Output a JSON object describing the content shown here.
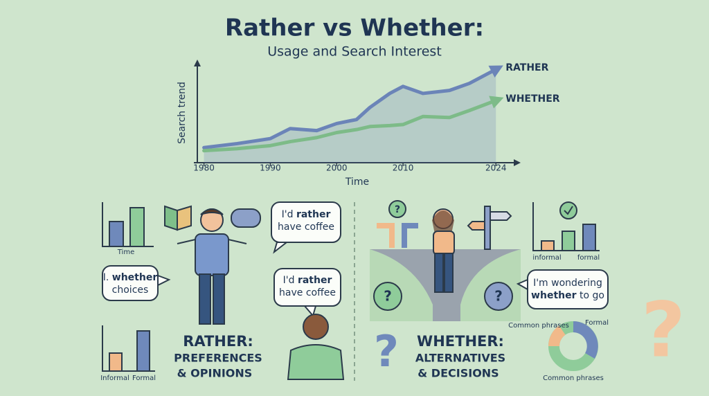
{
  "header": {
    "title": "Rather vs Whether:",
    "subtitle": "Usage and Search Interest"
  },
  "chart_data": {
    "type": "line",
    "ylabel": "Search trend",
    "xlabel": "Time",
    "x": [
      1980,
      1985,
      1990,
      1993,
      1997,
      2000,
      2003,
      2005,
      2008,
      2010,
      2013,
      2017,
      2020,
      2024
    ],
    "series": [
      {
        "name": "RATHER",
        "color": "#6b84b8",
        "values": [
          15,
          19,
          24,
          34,
          32,
          39,
          43,
          55,
          69,
          76,
          69,
          72,
          79,
          93
        ]
      },
      {
        "name": "WHETHER",
        "color": "#7dbb88",
        "values": [
          12,
          14,
          17,
          21,
          25,
          30,
          33,
          36,
          37,
          38,
          46,
          45,
          52,
          62
        ]
      }
    ],
    "xlim": [
      1979,
      2027
    ],
    "ylim": [
      0,
      100
    ],
    "xticks": [
      1980,
      1990,
      2000,
      2010,
      2024
    ]
  },
  "left": {
    "mini_top_label": "Time",
    "bubble_whether": {
      "line1a": "I.",
      "line1b": "whether",
      "line2": "choices"
    },
    "bubble_rather_1": {
      "line1a": "I'd",
      "line1b": "rather",
      "line2": "have coffee"
    },
    "bubble_rather_2": {
      "line1a": "I'd",
      "line1b": "rather",
      "line2": "have coffee"
    },
    "heading": "RATHER:",
    "caption_1": "PREFERENCES",
    "caption_2": "& OPINIONS",
    "mini_bottom_labels": [
      "Informal",
      "Formal"
    ]
  },
  "right": {
    "bubble": {
      "line1": "I'm wondering",
      "line2a": "whether",
      "line2b": "to go"
    },
    "mini_labels": [
      "informal",
      "formal"
    ],
    "donut_labels": [
      "Common phrases",
      "Formal",
      "Common phrases"
    ],
    "heading": "WHETHER:",
    "caption_1": "ALTERNATIVES",
    "caption_2": "& DECISIONS"
  }
}
